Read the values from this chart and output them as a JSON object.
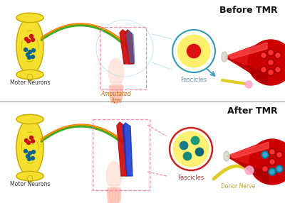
{
  "bg_color": "#ffffff",
  "title_before": "Before TMR",
  "title_after": "After TMR",
  "label_motor_neurons": "Motor Neurons",
  "label_amputated_arm": "Amputated\nArm",
  "label_fascicles_before": "Fascicles",
  "label_fascicles_after": "Fascicles",
  "label_donor_nerve": "Donor Nerve",
  "nerve_colors_top": [
    "#ff6600",
    "#ffaa00",
    "#dd8800",
    "#44aa22"
  ],
  "nerve_colors_bot": [
    "#ff6600",
    "#ffaa00",
    "#dd8800",
    "#44aa22"
  ]
}
